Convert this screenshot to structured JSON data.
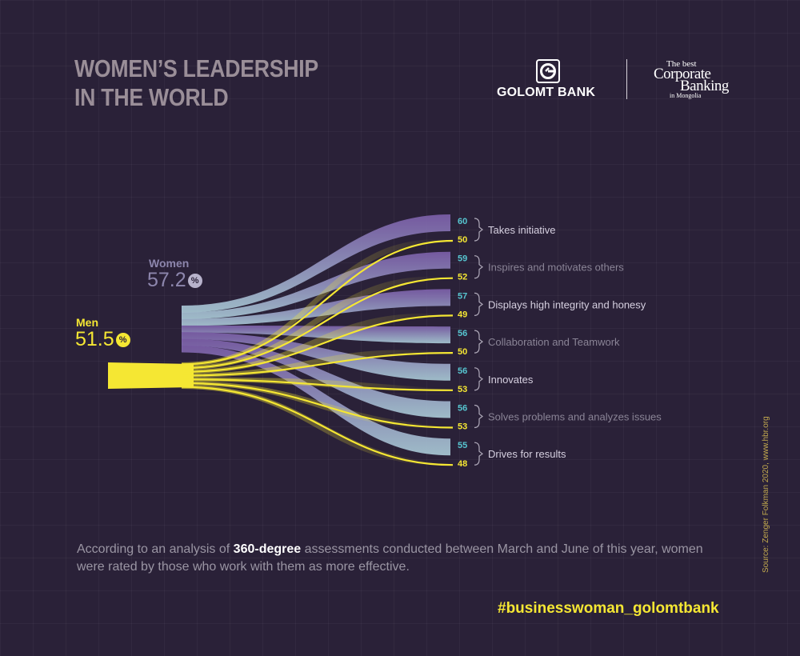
{
  "header": {
    "title_line1": "WOMEN’S LEADERSHIP",
    "title_line2": "IN THE WORLD",
    "brand_name": "GOLOMT BANK",
    "award_line1": "The best",
    "award_line2": "Corporate",
    "award_line3": "Banking",
    "award_line4": "in Mongolia"
  },
  "summary": {
    "women_label": "Women",
    "women_value": "57.2",
    "men_label": "Men",
    "men_value": "51.5",
    "percent_symbol": "%"
  },
  "chart_data": {
    "type": "sankey",
    "title": "",
    "series": [
      {
        "name": "Women",
        "total": 57.2,
        "color": "#8a7ab5"
      },
      {
        "name": "Men",
        "total": 51.5,
        "color": "#f5e733"
      }
    ],
    "categories": [
      "Takes initiative",
      "Inspires and motivates others",
      "Displays high integrity and honesy",
      "Collaboration and Teamwork",
      "Innovates",
      "Solves problems and analyzes issues",
      "Drives for results"
    ],
    "women_values": [
      60,
      59,
      57,
      56,
      56,
      56,
      55
    ],
    "men_values": [
      50,
      52,
      49,
      50,
      53,
      53,
      48
    ],
    "category_label_colors": [
      "#d6d0e0",
      "#8a8496",
      "#d6d0e0",
      "#8a8496",
      "#d6d0e0",
      "#8a8496",
      "#d6d0e0"
    ],
    "women_value_color": "#56c5d0",
    "men_value_color": "#f5e733"
  },
  "footer": {
    "text_before": "According to an analysis of ",
    "text_bold": "360-degree",
    "text_after": " assessments conducted between March and June of this year, women were rated by those who work with them as more effective.",
    "hashtag": "#businesswoman_golomtbank",
    "source": "Source: Zenger Folkman 2020, www.hbr.org"
  }
}
